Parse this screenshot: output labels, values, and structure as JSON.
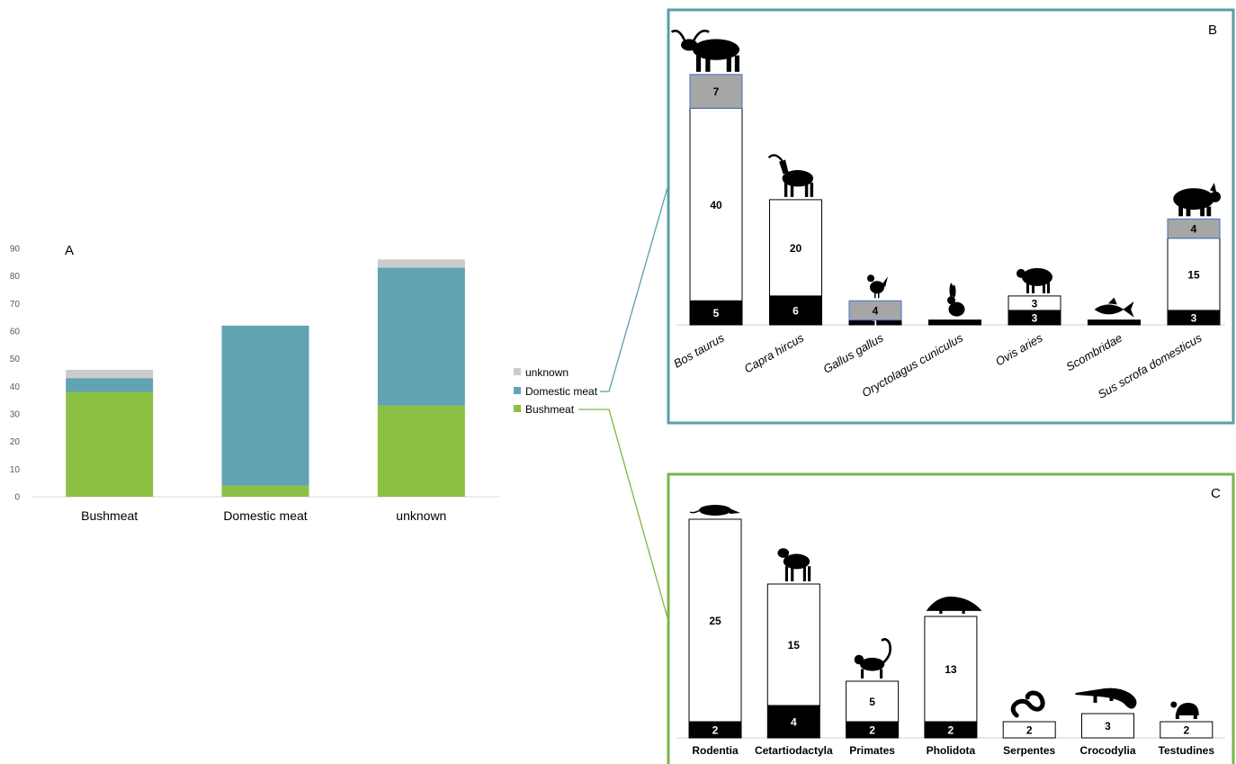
{
  "chart_data": [
    {
      "panel": "A",
      "type": "bar",
      "stacked": true,
      "categories": [
        "Bushmeat",
        "Domestic meat",
        "unknown"
      ],
      "series": [
        {
          "name": "Bushmeat",
          "color": "#8bc043",
          "values": [
            38,
            4,
            33
          ]
        },
        {
          "name": "Domestic meat",
          "color": "#61a3b1",
          "values": [
            5,
            58,
            50
          ]
        },
        {
          "name": "unknown",
          "color": "#cccccc",
          "values": [
            3,
            0,
            3
          ]
        }
      ],
      "ylim": [
        0,
        90
      ],
      "yticks": [
        0,
        10,
        20,
        30,
        40,
        50,
        60,
        70,
        80,
        90
      ],
      "legend": {
        "placement": "right",
        "entries": [
          "unknown",
          "Domestic meat",
          "Bushmeat"
        ]
      }
    },
    {
      "panel": "B",
      "type": "bar",
      "stacked": true,
      "border_color": "#5b9ea9",
      "categories": [
        "Bos taurus",
        "Capra hircus",
        "Gallus gallus",
        "Oryctolagus cuniculus",
        "Ovis aries",
        "Scombridae",
        "Sus scrofa domesticus"
      ],
      "icons": [
        "cattle-icon",
        "goat-icon",
        "chicken-icon",
        "rabbit-icon",
        "sheep-icon",
        "fish-icon",
        "pig-icon"
      ],
      "series": [
        {
          "fill": "#000000",
          "text_color": "#ffffff",
          "values": [
            5,
            6,
            1,
            1,
            3,
            1,
            3
          ],
          "labels": [
            "5",
            "6",
            "1",
            "",
            "3",
            "",
            "3"
          ]
        },
        {
          "fill": "#ffffff",
          "text_color": "#000000",
          "values": [
            40,
            20,
            0,
            0,
            3,
            0,
            15
          ],
          "labels": [
            "40",
            "20",
            "",
            "",
            "3",
            "",
            "15"
          ]
        },
        {
          "fill": "#a6a6a6",
          "text_color": "#000000",
          "values": [
            7,
            0,
            4,
            0,
            0,
            0,
            4
          ],
          "labels": [
            "7",
            "",
            "4",
            "",
            "",
            "",
            "4"
          ]
        }
      ]
    },
    {
      "panel": "C",
      "type": "bar",
      "stacked": true,
      "border_color": "#7ab648",
      "categories": [
        "Rodentia",
        "Cetartiodactyla",
        "Primates",
        "Pholidota",
        "Serpentes",
        "Crocodylia",
        "Testudines"
      ],
      "icons": [
        "rodent-icon",
        "antelope-icon",
        "monkey-icon",
        "pangolin-icon",
        "snake-icon",
        "crocodile-icon",
        "turtle-icon"
      ],
      "series": [
        {
          "fill": "#000000",
          "text_color": "#ffffff",
          "values": [
            2,
            4,
            2,
            2,
            0,
            0,
            0
          ],
          "labels": [
            "2",
            "4",
            "2",
            "2",
            "",
            "",
            ""
          ]
        },
        {
          "fill": "#ffffff",
          "text_color": "#000000",
          "values": [
            25,
            15,
            5,
            13,
            2,
            3,
            2
          ],
          "labels": [
            "25",
            "15",
            "5",
            "13",
            "2",
            "3",
            "2"
          ]
        }
      ]
    }
  ],
  "panel_labels": {
    "a": "A",
    "b": "B",
    "c": "C"
  }
}
